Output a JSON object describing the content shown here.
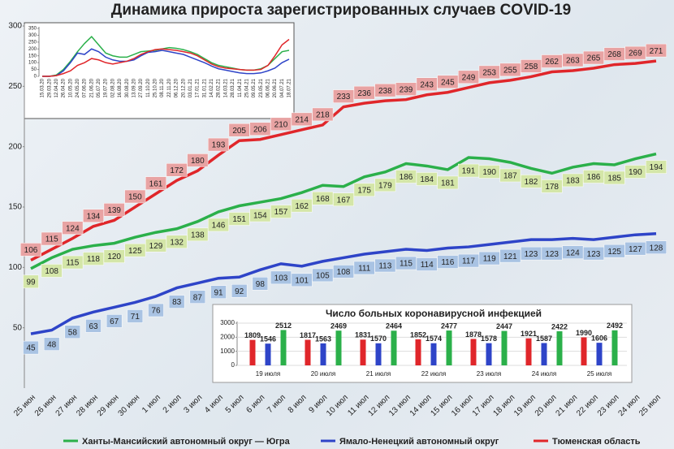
{
  "chart_data": [
    {
      "type": "line",
      "title": "Динамика прироста зарегистрированных случаев COVID-19",
      "categories": [
        "25 июн",
        "26 июн",
        "27 июн",
        "28 июн",
        "29 июн",
        "30 июн",
        "1 июл",
        "2 июл",
        "3 июл",
        "4 июл",
        "5 июл",
        "6 июл",
        "7 июл",
        "8 июл",
        "9 июл",
        "10 июл",
        "11 июл",
        "12 июл",
        "13 июл",
        "14 июл",
        "15 июл",
        "16 июл",
        "17 июл",
        "18 июл",
        "19 июл",
        "20 июл",
        "21 июл",
        "22 июл",
        "23 июл",
        "24 июл",
        "25 июл"
      ],
      "series": [
        {
          "name": "Ханты-Мансийский автономный округ — Югра",
          "color": "#2bb04a",
          "values": [
            99,
            108,
            115,
            118,
            120,
            125,
            129,
            132,
            138,
            146,
            151,
            154,
            157,
            162,
            168,
            167,
            175,
            179,
            186,
            184,
            181,
            191,
            190,
            187,
            182,
            178,
            183,
            186,
            185,
            190,
            194
          ]
        },
        {
          "name": "Ямало-Ненецкий автономный округ",
          "color": "#2e44c8",
          "values": [
            45,
            48,
            58,
            63,
            67,
            71,
            76,
            83,
            87,
            91,
            92,
            98,
            103,
            101,
            105,
            108,
            111,
            113,
            115,
            114,
            116,
            117,
            119,
            121,
            123,
            123,
            124,
            123,
            125,
            127,
            128
          ]
        },
        {
          "name": "Тюменская область",
          "color": "#e0262a",
          "values": [
            106,
            115,
            124,
            134,
            139,
            150,
            161,
            172,
            180,
            193,
            205,
            206,
            210,
            214,
            218,
            233,
            236,
            238,
            239,
            243,
            245,
            249,
            253,
            255,
            258,
            262,
            263,
            265,
            268,
            269,
            271
          ]
        }
      ],
      "ylim": [
        0,
        300
      ],
      "yticks": [
        50,
        100,
        150,
        200,
        250,
        300
      ],
      "data_labels": true,
      "legend": "bottom"
    },
    {
      "type": "line",
      "categories": [
        "15.03.20",
        "29.03.20",
        "12.04.20",
        "26.04.20",
        "10.05.20",
        "24.05.20",
        "07.06.20",
        "21.06.20",
        "05.07.20",
        "19.07.20",
        "02.08.20",
        "16.08.20",
        "30.08.20",
        "13.09.20",
        "27.09.20",
        "11.10.20",
        "25.10.20",
        "08.11.20",
        "22.11.20",
        "06.12.20",
        "20.12.20",
        "03.01.21",
        "17.01.21",
        "31.01.21",
        "14.02.21",
        "28.02.21",
        "14.03.21",
        "28.03.21",
        "11.04.21",
        "25.04.21",
        "09.05.21",
        "23.05.21",
        "06.06.21",
        "20.06.21",
        "04.07.21",
        "18.07.21"
      ],
      "series": [
        {
          "color": "#2bb04a",
          "values": [
            0,
            0,
            10,
            50,
            110,
            180,
            240,
            290,
            230,
            170,
            150,
            140,
            140,
            160,
            180,
            185,
            190,
            200,
            210,
            205,
            195,
            180,
            160,
            130,
            100,
            80,
            70,
            60,
            50,
            45,
            45,
            55,
            80,
            130,
            180,
            190
          ]
        },
        {
          "color": "#2e44c8",
          "values": [
            0,
            0,
            5,
            40,
            100,
            170,
            160,
            200,
            180,
            140,
            120,
            110,
            110,
            120,
            150,
            175,
            180,
            190,
            180,
            170,
            160,
            140,
            120,
            100,
            75,
            55,
            45,
            35,
            25,
            20,
            20,
            25,
            40,
            60,
            100,
            125
          ]
        },
        {
          "color": "#e0262a",
          "values": [
            0,
            0,
            5,
            20,
            40,
            80,
            100,
            130,
            120,
            100,
            90,
            100,
            110,
            130,
            160,
            180,
            195,
            200,
            195,
            190,
            180,
            170,
            150,
            120,
            90,
            70,
            60,
            55,
            50,
            45,
            45,
            50,
            80,
            150,
            230,
            270
          ]
        }
      ],
      "ylim": [
        0,
        350
      ],
      "yticks": [
        0,
        50,
        100,
        150,
        200,
        250,
        300,
        350
      ]
    },
    {
      "type": "bar",
      "title": "Число больных коронавирусной  инфекцией",
      "categories": [
        "19 июля",
        "20 июля",
        "21 июля",
        "22 июля",
        "23 июля",
        "24 июля",
        "25 июля"
      ],
      "series": [
        {
          "color": "#e0262a",
          "values": [
            1809,
            1817,
            1831,
            1852,
            1878,
            1921,
            1990
          ]
        },
        {
          "color": "#2e44c8",
          "values": [
            1546,
            1563,
            1570,
            1574,
            1578,
            1587,
            1606
          ]
        },
        {
          "color": "#2bb04a",
          "values": [
            2512,
            2469,
            2464,
            2477,
            2447,
            2422,
            2492
          ]
        }
      ],
      "ylim": [
        0,
        3000
      ],
      "yticks": [
        0,
        1000,
        2000,
        3000
      ],
      "data_labels": true
    }
  ]
}
